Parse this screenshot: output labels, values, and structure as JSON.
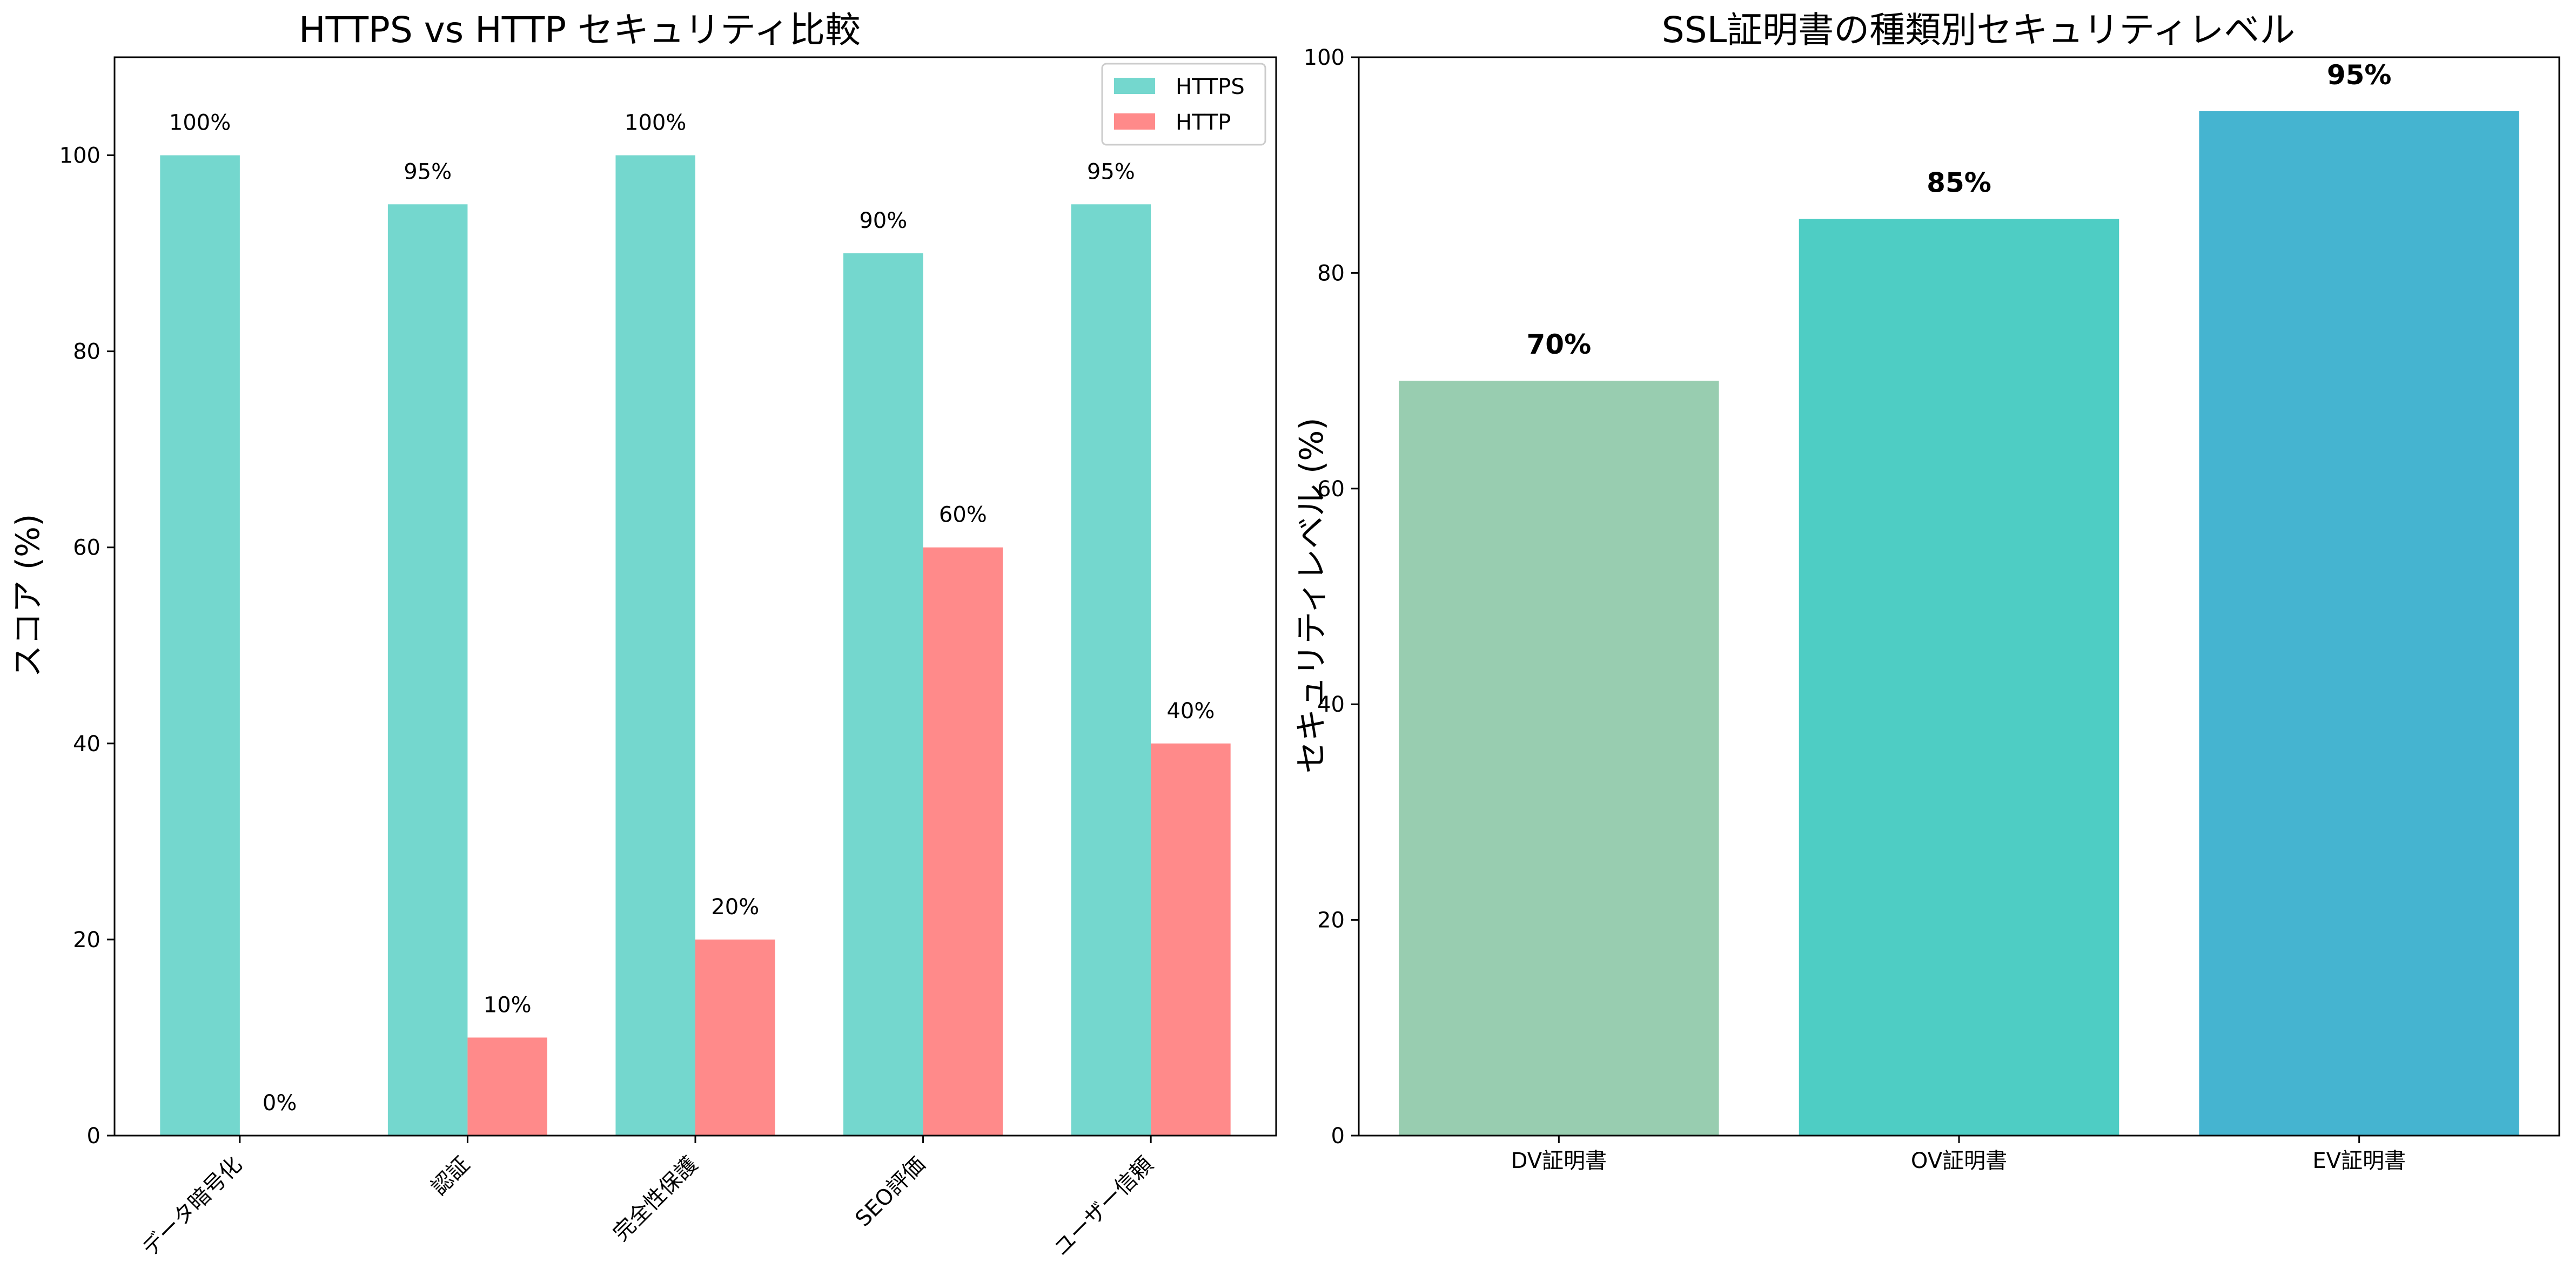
{
  "chart_data": [
    {
      "type": "bar",
      "title": "HTTPS vs HTTP セキュリティ比較",
      "xlabel": "",
      "ylabel": "スコア (%)",
      "categories": [
        "データ暗号化",
        "認証",
        "完全性保護",
        "SEO評価",
        "ユーザー信頼"
      ],
      "series": [
        {
          "name": "HTTPS",
          "values": [
            100,
            95,
            100,
            90,
            95
          ],
          "color": "#74D7CE",
          "value_labels": [
            "100%",
            "95%",
            "100%",
            "90%",
            "95%"
          ]
        },
        {
          "name": "HTTP",
          "values": [
            0,
            10,
            20,
            60,
            40
          ],
          "color": "#FF8A8A",
          "value_labels": [
            "0%",
            "10%",
            "20%",
            "60%",
            "40%"
          ]
        }
      ],
      "ylim": [
        0,
        110
      ],
      "yticks": [
        0,
        20,
        40,
        60,
        80,
        100
      ],
      "ytick_labels": [
        "0",
        "20",
        "40",
        "60",
        "80",
        "100"
      ],
      "legend": "top-right",
      "grid": false
    },
    {
      "type": "bar",
      "title": "SSL証明書の種類別セキュリティレベル",
      "xlabel": "",
      "ylabel": "セキュリティレベル (%)",
      "categories": [
        "DV証明書",
        "OV証明書",
        "EV証明書"
      ],
      "series": [
        {
          "name": "セキュリティレベル",
          "values": [
            70,
            85,
            95
          ],
          "value_labels": [
            "70%",
            "85%",
            "95%"
          ]
        }
      ],
      "colors": [
        "#98CDB0",
        "#4ECDC4",
        "#45B4D0"
      ],
      "ylim": [
        0,
        100
      ],
      "yticks": [
        0,
        20,
        40,
        60,
        80,
        100
      ],
      "ytick_labels": [
        "0",
        "20",
        "40",
        "60",
        "80",
        "100"
      ],
      "grid": false
    }
  ]
}
